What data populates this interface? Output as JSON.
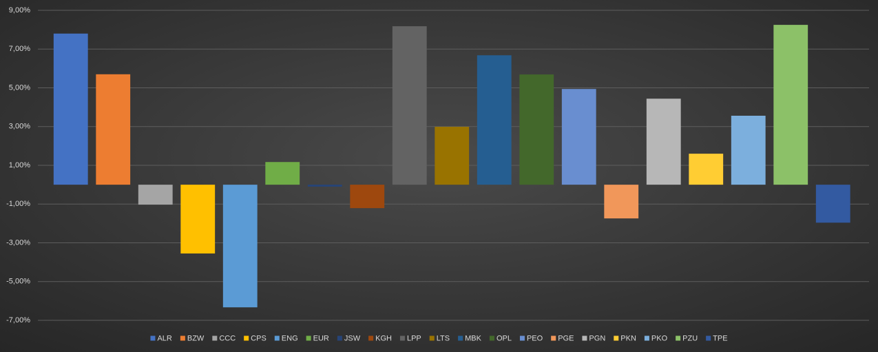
{
  "chart_data": {
    "type": "bar",
    "grid": true,
    "legend": "bottom",
    "ylim": [
      -7,
      9
    ],
    "yticks": [
      {
        "value": -7,
        "label": "-7,00%"
      },
      {
        "value": -5,
        "label": "-5,00%"
      },
      {
        "value": -3,
        "label": "-3,00%"
      },
      {
        "value": -1,
        "label": "-1,00%"
      },
      {
        "value": 1,
        "label": "1,00%"
      },
      {
        "value": 3,
        "label": "3,00%"
      },
      {
        "value": 5,
        "label": "5,00%"
      },
      {
        "value": 7,
        "label": "7,00%"
      },
      {
        "value": 9,
        "label": "9,00%"
      }
    ],
    "series": [
      {
        "name": "ALR",
        "color": "#4472c4",
        "values": [
          7.8
        ]
      },
      {
        "name": "BZW",
        "color": "#ed7d31",
        "values": [
          5.7
        ]
      },
      {
        "name": "CCC",
        "color": "#a5a5a5",
        "values": [
          -1.03
        ]
      },
      {
        "name": "CPS",
        "color": "#ffc000",
        "values": [
          -3.55
        ]
      },
      {
        "name": "ENG",
        "color": "#5b9bd5",
        "values": [
          -6.33
        ]
      },
      {
        "name": "EUR",
        "color": "#70ad47",
        "values": [
          1.17
        ]
      },
      {
        "name": "JSW",
        "color": "#264478",
        "values": [
          -0.1
        ]
      },
      {
        "name": "KGH",
        "color": "#9e480e",
        "values": [
          -1.21
        ]
      },
      {
        "name": "LPP",
        "color": "#636363",
        "values": [
          8.18
        ]
      },
      {
        "name": "LTS",
        "color": "#997300",
        "values": [
          2.99
        ]
      },
      {
        "name": "MBK",
        "color": "#255e91",
        "values": [
          6.68
        ]
      },
      {
        "name": "OPL",
        "color": "#43682b",
        "values": [
          5.69
        ]
      },
      {
        "name": "PEO",
        "color": "#698ed0",
        "values": [
          4.94
        ]
      },
      {
        "name": "PGE",
        "color": "#f1975a",
        "values": [
          -1.74
        ]
      },
      {
        "name": "PGN",
        "color": "#b7b7b7",
        "values": [
          4.44
        ]
      },
      {
        "name": "PKN",
        "color": "#ffcd33",
        "values": [
          1.6
        ]
      },
      {
        "name": "PKO",
        "color": "#7cafdd",
        "values": [
          3.56
        ]
      },
      {
        "name": "PZU",
        "color": "#8cc168",
        "values": [
          8.25
        ]
      },
      {
        "name": "TPE",
        "color": "#335aa1",
        "values": [
          -1.96
        ]
      }
    ]
  }
}
